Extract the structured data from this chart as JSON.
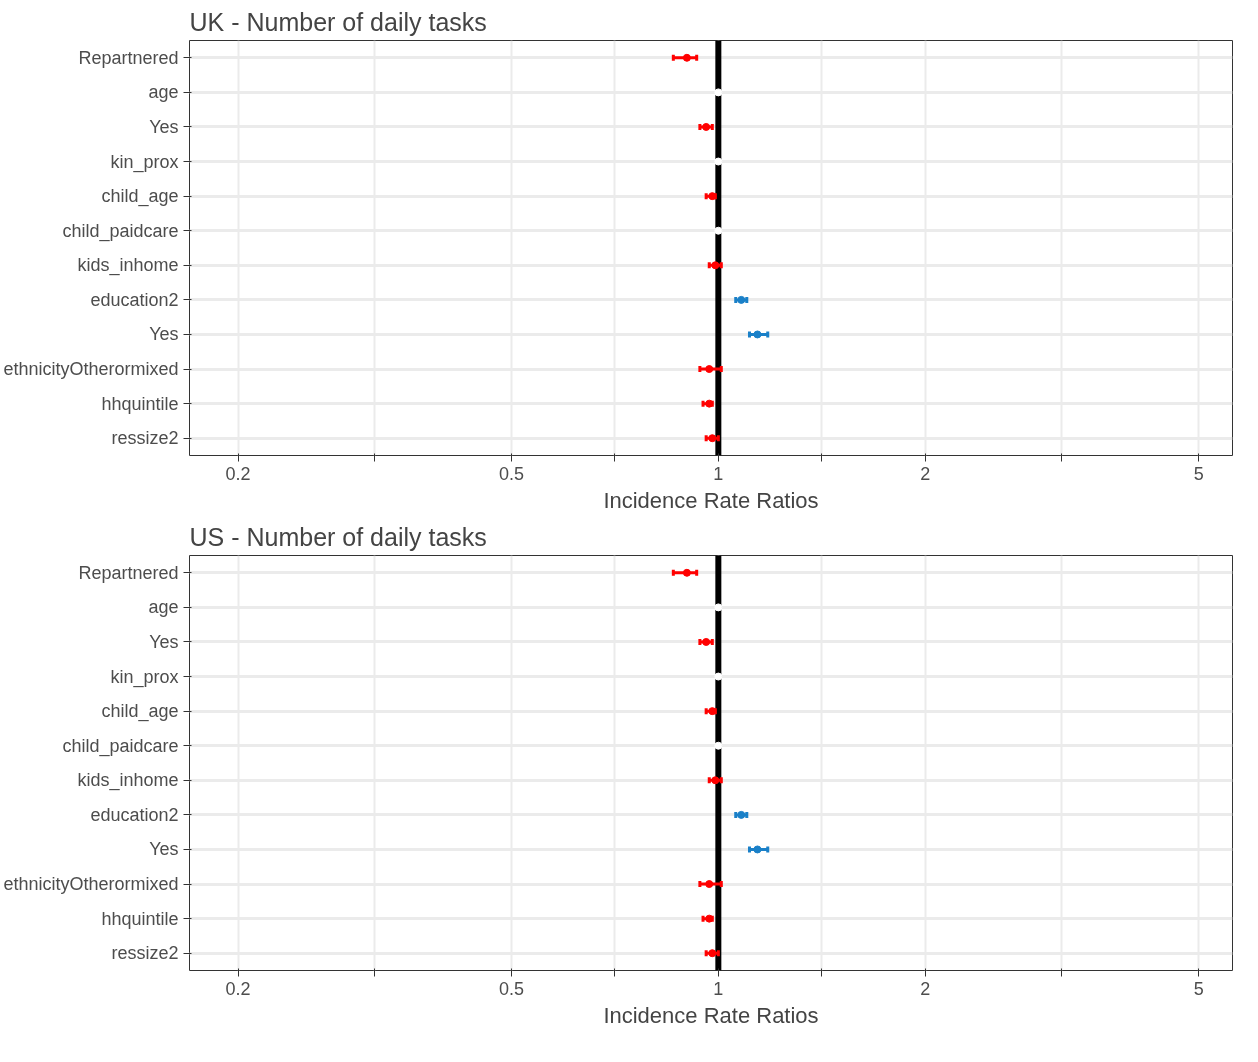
{
  "chart_data": [
    {
      "type": "scatter",
      "title": "UK - Number of daily tasks",
      "xlabel": "Incidence Rate Ratios",
      "orientation": "horizontal",
      "log": "x",
      "grid": true,
      "marker": "circle",
      "xlim": [
        0.17,
        5.6
      ],
      "xticks": [
        0.2,
        {
          "value": 0.316,
          "label": null
        },
        0.5,
        {
          "value": 0.707,
          "label": null
        },
        1,
        {
          "value": 1.414,
          "label": null
        },
        2,
        {
          "value": 3.162,
          "label": null
        },
        5
      ],
      "categories": [
        "Repartnered",
        "age",
        "Yes",
        "kin_prox",
        "child_age",
        "child_paidcare",
        "kids_inhome",
        "education2",
        "Yes",
        "ethnicityOtherormixed",
        "hhquintile",
        "ressize2"
      ],
      "series": [
        {
          "colors": [
            "#ff0000",
            "#ffffff",
            "#ff0000",
            "#ffffff",
            "#ff0000",
            "#ffffff",
            "#ff0000",
            "#1a80c8",
            "#1a80c8",
            "#ff0000",
            "#ff0000",
            "#ff0000"
          ],
          "values": [
            0.9,
            1.0,
            0.96,
            1.0,
            0.98,
            1.0,
            0.99,
            1.08,
            1.14,
            0.97,
            0.97,
            0.98
          ],
          "errors": [
            [
              0.86,
              0.93
            ],
            null,
            [
              0.94,
              0.98
            ],
            null,
            [
              0.96,
              0.99
            ],
            null,
            [
              0.97,
              1.01
            ],
            [
              1.06,
              1.1
            ],
            [
              1.11,
              1.18
            ],
            [
              0.94,
              1.01
            ],
            [
              0.95,
              0.98
            ],
            [
              0.96,
              1.0
            ]
          ]
        }
      ],
      "ref_lines": [
        {
          "axis": "x",
          "value": 1,
          "color": "#000000"
        }
      ]
    },
    {
      "type": "scatter",
      "title": "US - Number of daily tasks",
      "xlabel": "Incidence Rate Ratios",
      "orientation": "horizontal",
      "log": "x",
      "grid": true,
      "marker": "circle",
      "xlim": [
        0.17,
        5.6
      ],
      "xticks": [
        0.2,
        {
          "value": 0.316,
          "label": null
        },
        0.5,
        {
          "value": 0.707,
          "label": null
        },
        1,
        {
          "value": 1.414,
          "label": null
        },
        2,
        {
          "value": 3.162,
          "label": null
        },
        5
      ],
      "categories": [
        "Repartnered",
        "age",
        "Yes",
        "kin_prox",
        "child_age",
        "child_paidcare",
        "kids_inhome",
        "education2",
        "Yes",
        "ethnicityOtherormixed",
        "hhquintile",
        "ressize2"
      ],
      "series": [
        {
          "colors": [
            "#ff0000",
            "#ffffff",
            "#ff0000",
            "#ffffff",
            "#ff0000",
            "#ffffff",
            "#ff0000",
            "#1a80c8",
            "#1a80c8",
            "#ff0000",
            "#ff0000",
            "#ff0000"
          ],
          "values": [
            0.9,
            1.0,
            0.96,
            1.0,
            0.98,
            1.0,
            0.99,
            1.08,
            1.14,
            0.97,
            0.97,
            0.98
          ],
          "errors": [
            [
              0.86,
              0.93
            ],
            null,
            [
              0.94,
              0.98
            ],
            null,
            [
              0.96,
              0.99
            ],
            null,
            [
              0.97,
              1.01
            ],
            [
              1.06,
              1.1
            ],
            [
              1.11,
              1.18
            ],
            [
              0.94,
              1.01
            ],
            [
              0.95,
              0.98
            ],
            [
              0.96,
              1.0
            ]
          ]
        }
      ],
      "ref_lines": [
        {
          "axis": "x",
          "value": 1,
          "color": "#000000"
        }
      ]
    }
  ]
}
